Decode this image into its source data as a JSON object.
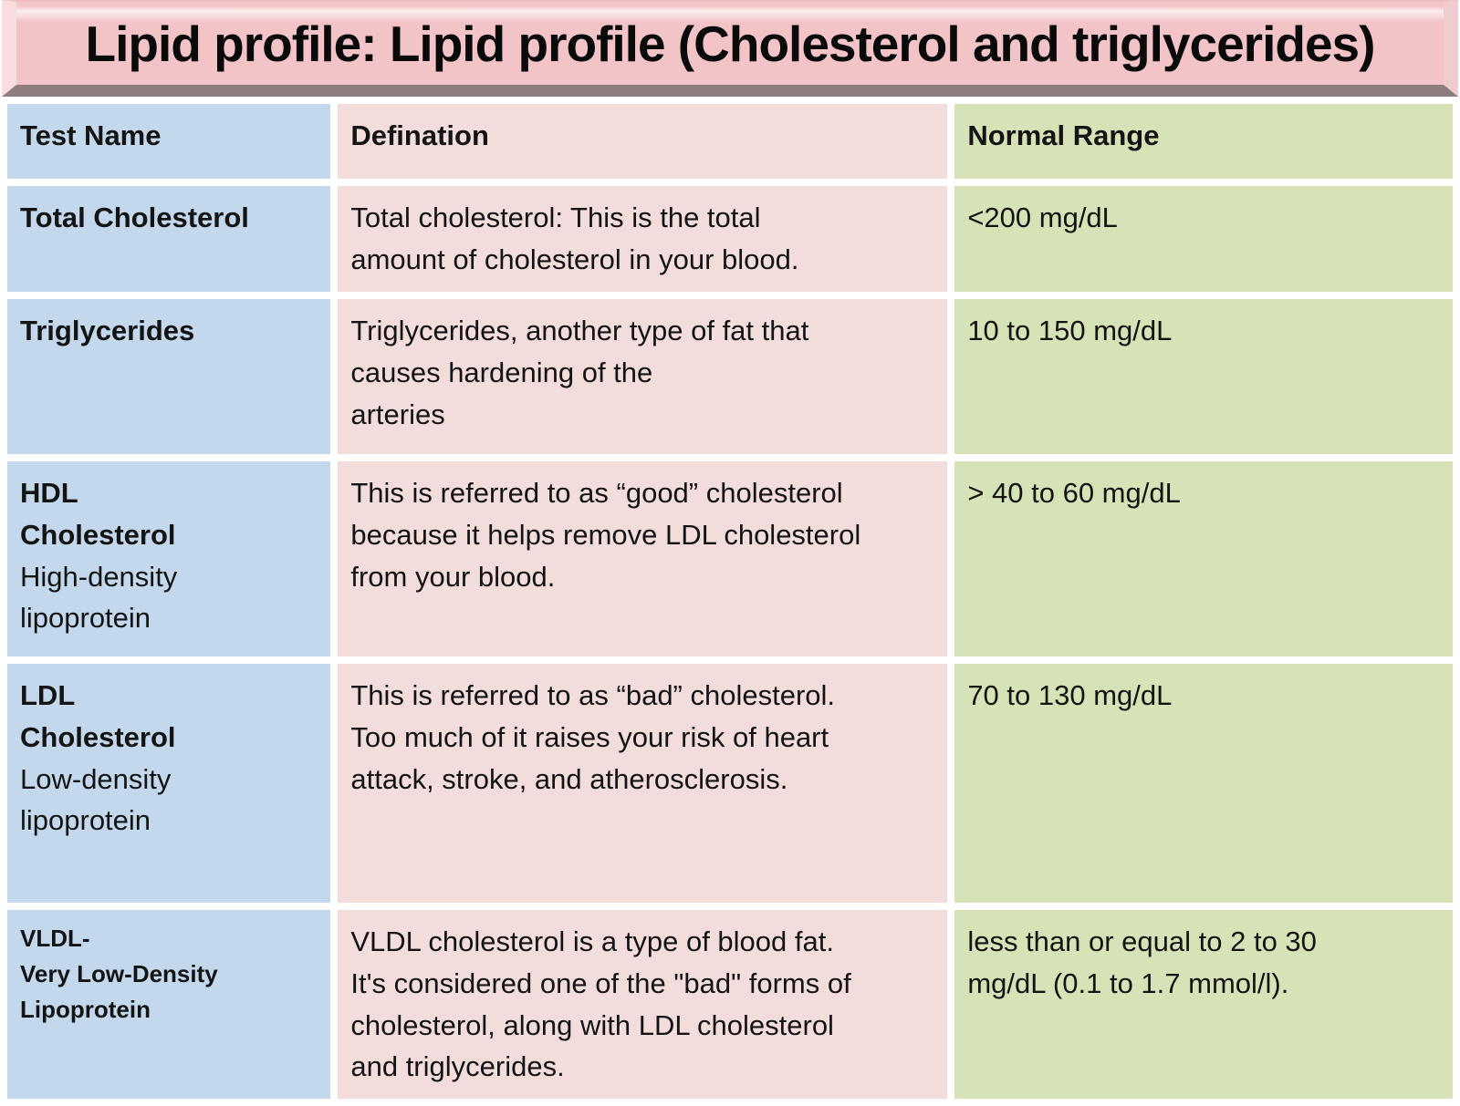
{
  "title": "Lipid profile: Lipid profile (Cholesterol and triglycerides)",
  "table": {
    "headers": [
      "Test Name",
      "Defination",
      "Normal Range"
    ],
    "rows": [
      {
        "name_bold": "Total Cholesterol",
        "name_regular": "",
        "definition": "Total cholesterol: This is the total\namount of cholesterol in your blood.",
        "normal_range": "<200 mg/dL"
      },
      {
        "name_bold": "Triglycerides",
        "name_regular": "",
        "definition": "Triglycerides, another type of fat that\ncauses hardening of the\narteries",
        "normal_range": "10 to 150 mg/dL"
      },
      {
        "name_bold": "HDL\nCholesterol",
        "name_regular": "High-density\nlipoprotein",
        "definition": "This is referred to as “good” cholesterol\nbecause it helps remove LDL cholesterol\nfrom your blood.",
        "normal_range": "> 40 to 60 mg/dL"
      },
      {
        "name_bold": "LDL\nCholesterol",
        "name_regular": "Low-density\nlipoprotein",
        "definition": "This is referred to as “bad” cholesterol.\nToo much of it raises your risk of heart\nattack, stroke, and atherosclerosis.",
        "normal_range": "70 to 130 mg/dL"
      },
      {
        "name_bold": "VLDL-\nVery Low-Density\nLipoprotein",
        "name_regular": "",
        "definition": "VLDL cholesterol is a type of blood fat.\nIt's considered one of the \"bad\" forms of\ncholesterol, along with LDL cholesterol\nand triglycerides.",
        "normal_range": "less than or equal to 2 to 30\nmg/dL (0.1 to 1.7 mmol/l)."
      }
    ]
  },
  "colors": {
    "test_name_column": "#c3d8ec",
    "definition_column": "#f2dddc",
    "normal_range_column": "#d6e3b6",
    "title_background": "#f2c3c7",
    "title_highlight": "#fdeff0",
    "title_shadow": "#8e7d7f",
    "gap": "#ffffff",
    "text": "#141414"
  }
}
